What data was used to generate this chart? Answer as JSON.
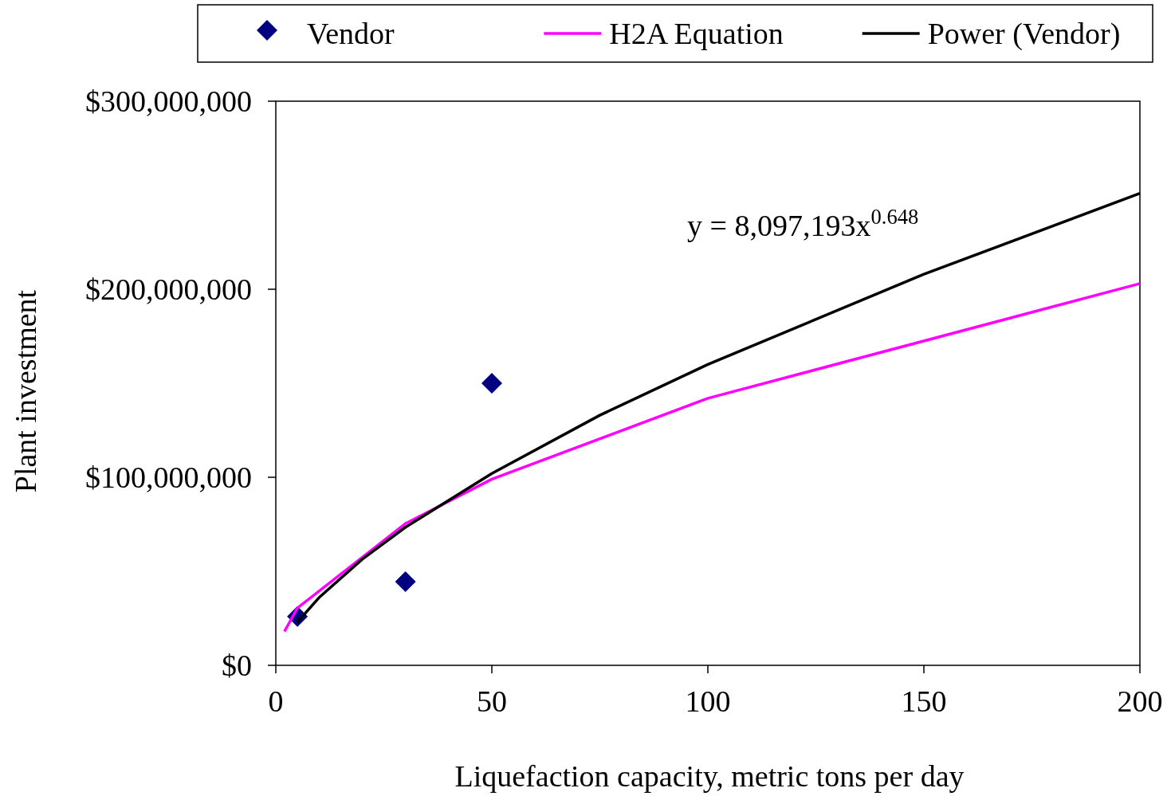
{
  "chart_data": {
    "type": "line",
    "xlabel": "Liquefaction capacity, metric tons per day",
    "ylabel": "Plant investment",
    "xlim": [
      0,
      200
    ],
    "xticks": [
      0,
      50,
      100,
      150,
      200
    ],
    "ylim": [
      0,
      300000000
    ],
    "yticks": [
      {
        "value": 0,
        "label": "$0"
      },
      {
        "value": 100000000,
        "label": "$100,000,000"
      },
      {
        "value": 200000000,
        "label": "$200,000,000"
      },
      {
        "value": 300000000,
        "label": "$300,000,000"
      }
    ],
    "grid": false,
    "legend": "top",
    "annotations": [
      "y = 8,097,193x$^{0.648}$"
    ],
    "series": [
      {
        "name": "Vendor",
        "type": "scatter",
        "marker": "diamond",
        "color": "#000080",
        "x": [
          5,
          30,
          50
        ],
        "values": [
          26000000,
          44500000,
          150000000
        ]
      },
      {
        "name": "H2A Equation",
        "marker": "none",
        "color": "#ff00ff",
        "x": [
          2,
          5,
          30,
          50,
          100,
          200
        ],
        "values": [
          18000000,
          30500000,
          75400000,
          99000000,
          142000000,
          203000000
        ]
      },
      {
        "name": "Power (Vendor)",
        "marker": "none",
        "color": "#000000",
        "x": [
          5,
          10,
          20,
          30,
          50,
          75,
          100,
          150,
          200
        ],
        "values": [
          23000000,
          36000000,
          56400000,
          73400000,
          102000000,
          133000000,
          160000000,
          208000000,
          251000000
        ]
      }
    ]
  }
}
